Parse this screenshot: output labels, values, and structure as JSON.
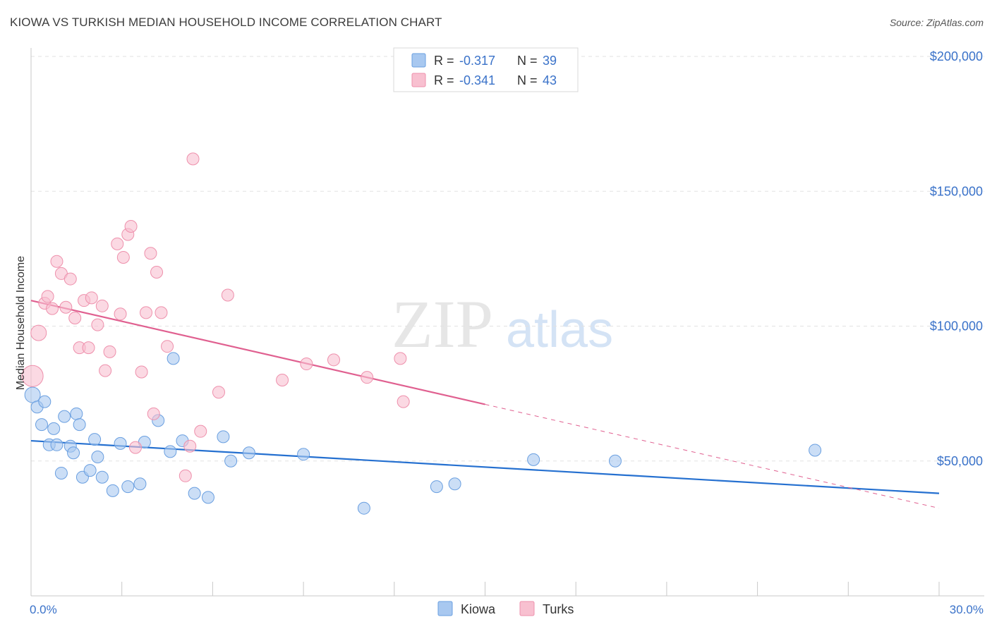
{
  "title": "KIOWA VS TURKISH MEDIAN HOUSEHOLD INCOME CORRELATION CHART",
  "source": "Source: ZipAtlas.com",
  "watermark": {
    "zip": "ZIP",
    "atlas": "atlas"
  },
  "chart_data": {
    "type": "scatter",
    "xlabel": "",
    "ylabel": "Median Household Income",
    "xlim": [
      0,
      30
    ],
    "ylim": [
      0,
      210000
    ],
    "x_tick_labels": [
      {
        "value": 0,
        "label": "0.0%"
      },
      {
        "value": 30,
        "label": "30.0%"
      }
    ],
    "y_tick_labels": [
      {
        "value": 50000,
        "label": "$50,000"
      },
      {
        "value": 100000,
        "label": "$100,000"
      },
      {
        "value": 150000,
        "label": "$150,000"
      },
      {
        "value": 200000,
        "label": "$200,000"
      }
    ],
    "legend_stats": [
      {
        "r_label": "R =",
        "r_value": "-0.317",
        "n_label": "N =",
        "n_value": "39"
      },
      {
        "r_label": "R =",
        "r_value": "-0.341",
        "n_label": "N =",
        "n_value": "43"
      }
    ],
    "series": [
      {
        "name": "Kiowa",
        "color": "#a8c8f0",
        "stroke": "#6a9fe0",
        "line_color": "#2570d0",
        "trend": {
          "x0": 0,
          "y0": 57500,
          "x1": 30,
          "y1": 38000,
          "solid_to": 30
        },
        "points": [
          [
            0.05,
            74500
          ],
          [
            0.2,
            70000
          ],
          [
            0.35,
            63500
          ],
          [
            0.45,
            72000
          ],
          [
            0.6,
            56000
          ],
          [
            0.75,
            62000
          ],
          [
            0.85,
            56000
          ],
          [
            1.0,
            45500
          ],
          [
            1.1,
            66500
          ],
          [
            1.3,
            55500
          ],
          [
            1.4,
            53000
          ],
          [
            1.5,
            67500
          ],
          [
            1.6,
            63500
          ],
          [
            1.7,
            44000
          ],
          [
            1.95,
            46500
          ],
          [
            2.1,
            58000
          ],
          [
            2.2,
            51500
          ],
          [
            2.35,
            44000
          ],
          [
            2.7,
            39000
          ],
          [
            2.95,
            56500
          ],
          [
            3.2,
            40500
          ],
          [
            3.6,
            41500
          ],
          [
            3.75,
            57000
          ],
          [
            4.2,
            65000
          ],
          [
            4.6,
            53500
          ],
          [
            4.7,
            88000
          ],
          [
            5.0,
            57500
          ],
          [
            5.4,
            38000
          ],
          [
            5.85,
            36500
          ],
          [
            6.35,
            59000
          ],
          [
            6.6,
            50000
          ],
          [
            7.2,
            53000
          ],
          [
            9.0,
            52500
          ],
          [
            11.0,
            32500
          ],
          [
            13.4,
            40500
          ],
          [
            14.0,
            41500
          ],
          [
            16.6,
            50500
          ],
          [
            19.3,
            50000
          ],
          [
            25.9,
            54000
          ]
        ]
      },
      {
        "name": "Turks",
        "color": "#f8c0d0",
        "stroke": "#ee90ac",
        "line_color": "#e06090",
        "trend": {
          "x0": 0,
          "y0": 109500,
          "x1": 30,
          "y1": 32500,
          "solid_to": 15
        },
        "points": [
          [
            0.05,
            81500
          ],
          [
            0.25,
            97500
          ],
          [
            0.45,
            108500
          ],
          [
            0.55,
            111000
          ],
          [
            0.7,
            106500
          ],
          [
            0.85,
            124000
          ],
          [
            1.0,
            119500
          ],
          [
            1.15,
            107000
          ],
          [
            1.3,
            117500
          ],
          [
            1.45,
            103000
          ],
          [
            1.6,
            92000
          ],
          [
            1.75,
            109500
          ],
          [
            1.9,
            92000
          ],
          [
            2.0,
            110500
          ],
          [
            2.2,
            100500
          ],
          [
            2.35,
            107500
          ],
          [
            2.45,
            83500
          ],
          [
            2.6,
            90500
          ],
          [
            2.85,
            130500
          ],
          [
            2.95,
            104500
          ],
          [
            3.05,
            125500
          ],
          [
            3.2,
            134000
          ],
          [
            3.3,
            137000
          ],
          [
            3.45,
            55000
          ],
          [
            3.65,
            83000
          ],
          [
            3.8,
            105000
          ],
          [
            3.95,
            127000
          ],
          [
            4.05,
            67500
          ],
          [
            4.15,
            120000
          ],
          [
            4.3,
            105000
          ],
          [
            4.5,
            92500
          ],
          [
            5.1,
            44500
          ],
          [
            5.25,
            55500
          ],
          [
            5.35,
            162000
          ],
          [
            5.6,
            61000
          ],
          [
            6.2,
            75500
          ],
          [
            6.5,
            111500
          ],
          [
            8.3,
            80000
          ],
          [
            9.1,
            86000
          ],
          [
            10.0,
            87500
          ],
          [
            11.1,
            81000
          ],
          [
            12.2,
            88000
          ],
          [
            12.3,
            72000
          ]
        ]
      }
    ]
  }
}
